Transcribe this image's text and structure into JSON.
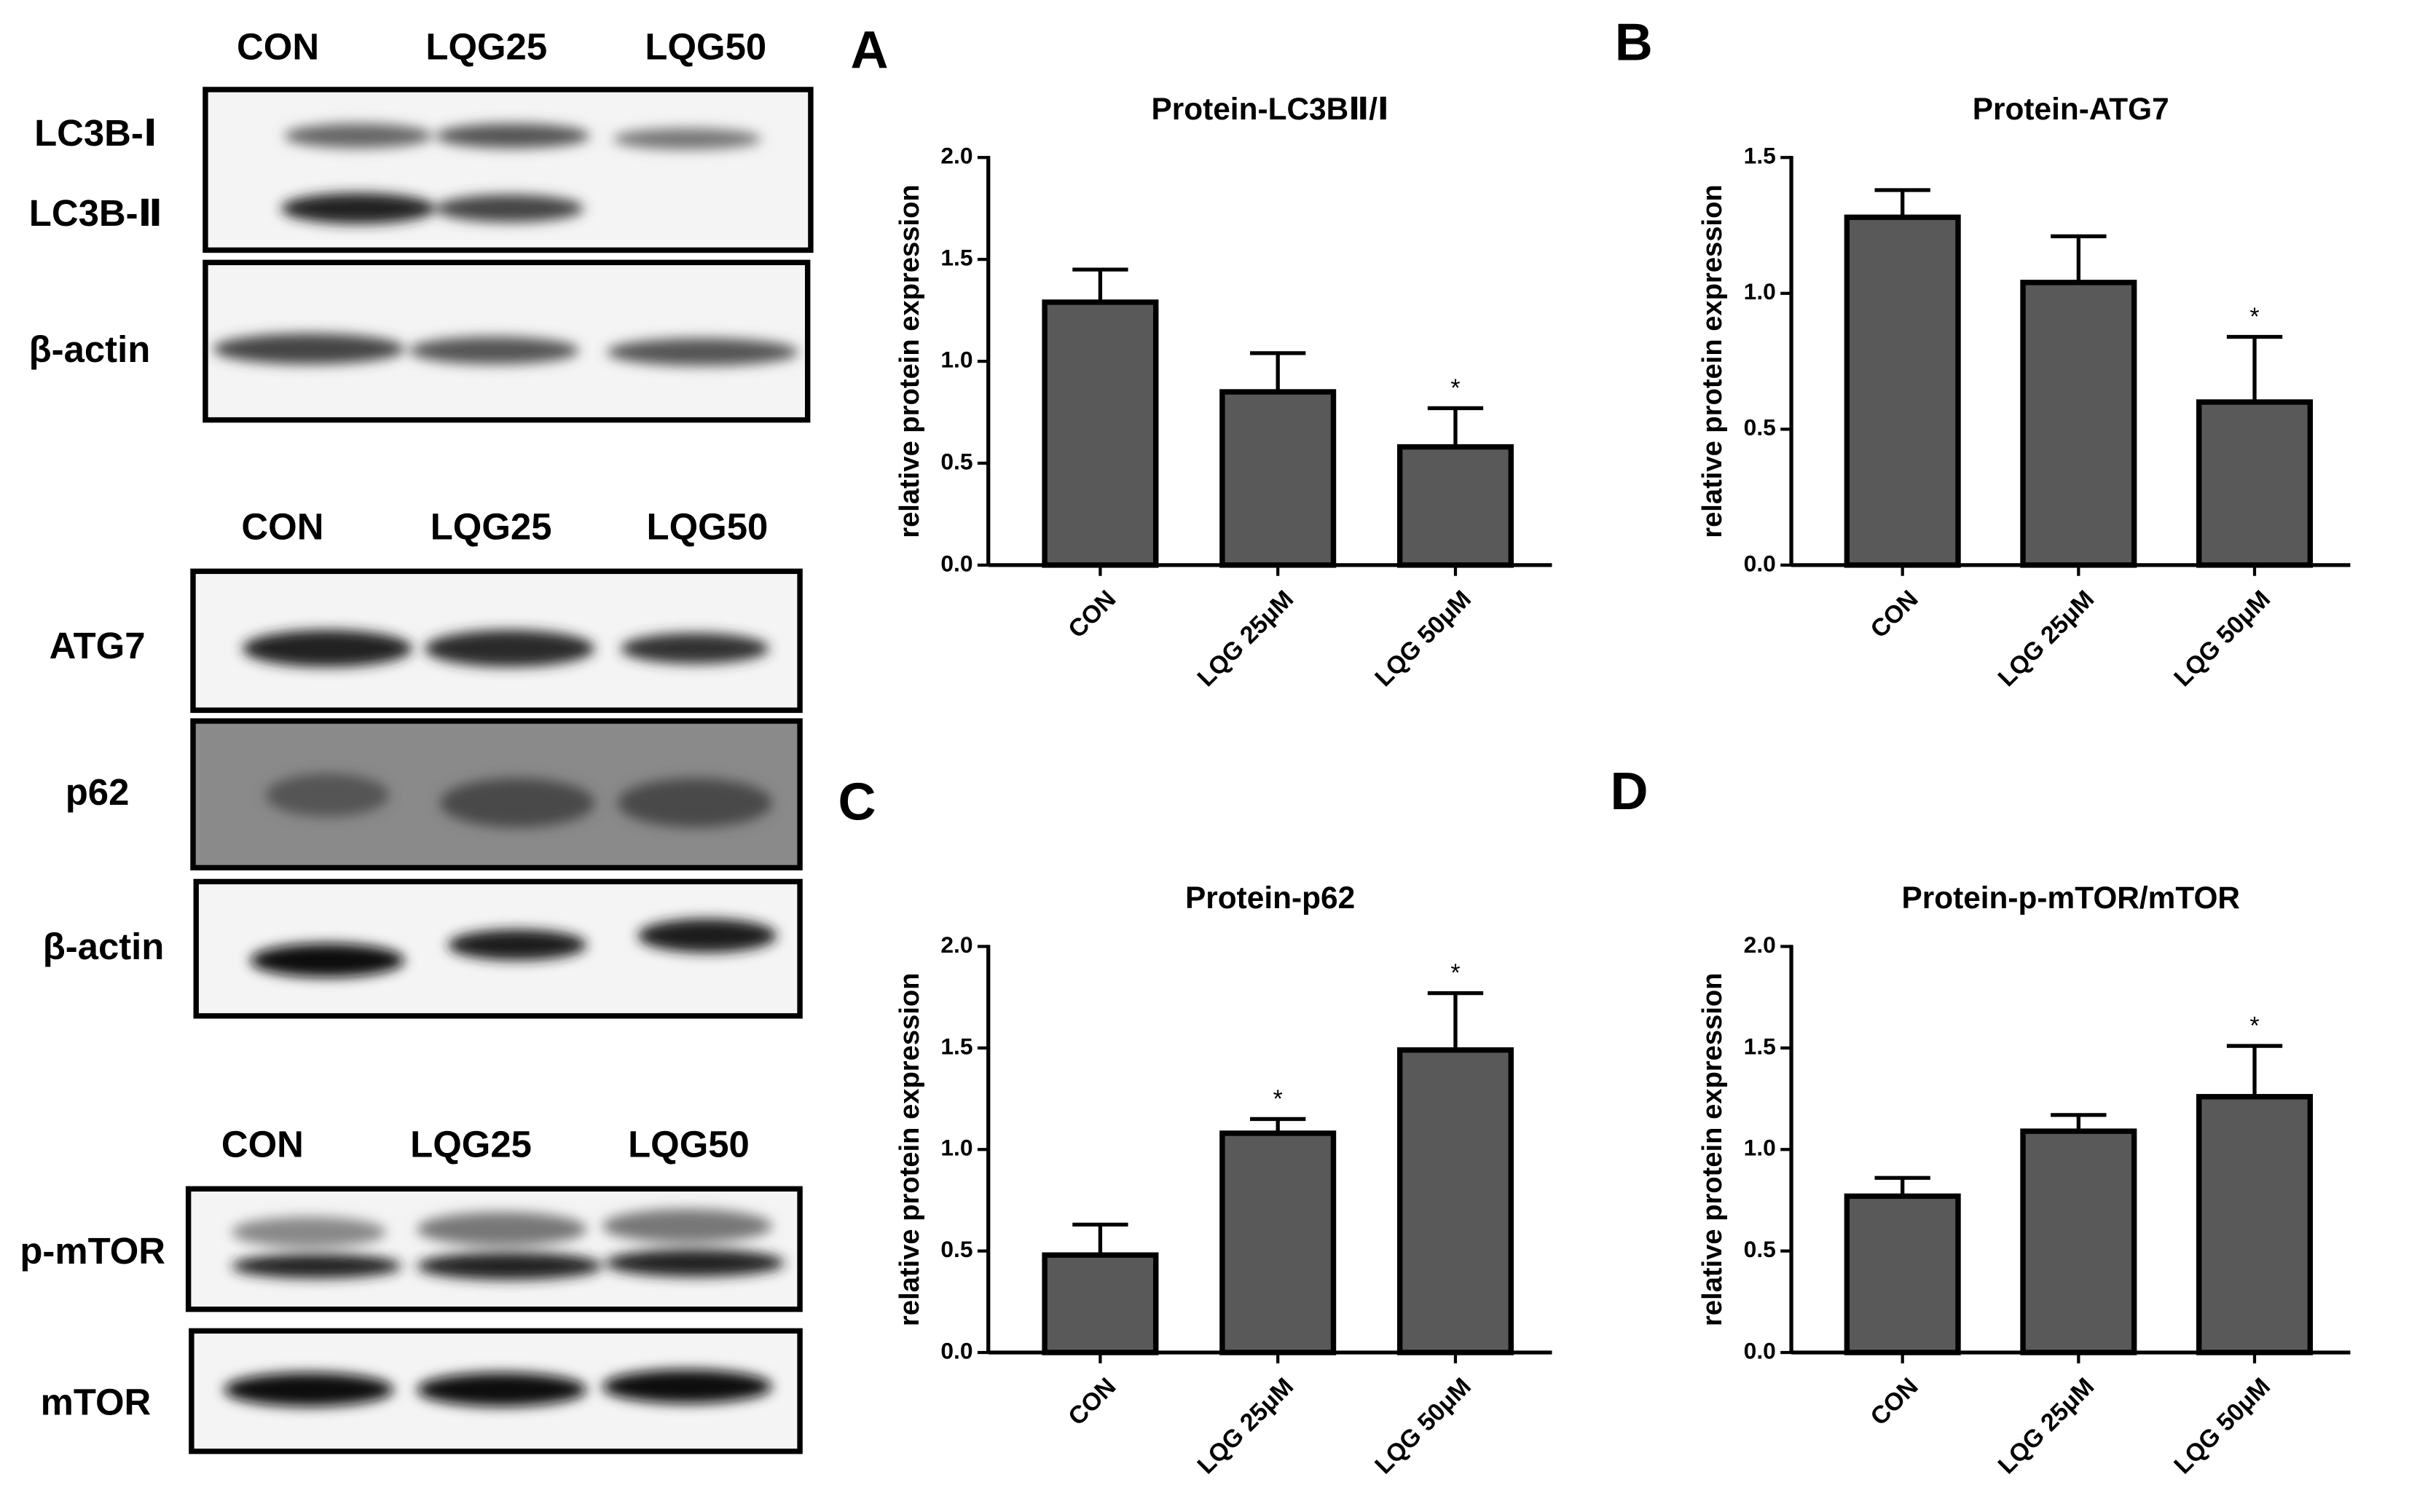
{
  "blots": {
    "groups": [
      {
        "lanes": [
          "CON",
          "LQG25",
          "LQG50"
        ],
        "rows": [
          "LC3B-Ⅰ",
          "LC3B-Ⅱ",
          "β-actin"
        ]
      },
      {
        "lanes": [
          "CON",
          "LQG25",
          "LQG50"
        ],
        "rows": [
          "ATG7",
          "p62",
          "β-actin"
        ]
      },
      {
        "lanes": [
          "CON",
          "LQG25",
          "LQG50"
        ],
        "rows": [
          "p-mTOR",
          "mTOR"
        ]
      }
    ]
  },
  "chart_data": [
    {
      "type": "bar",
      "panel": "A",
      "title": "Protein-LC3BⅡ/Ⅰ",
      "y_label": "relative protein expression",
      "categories": [
        "CON",
        "LQG 25μM",
        "LQG 50μM"
      ],
      "values": [
        1.29,
        0.85,
        0.58
      ],
      "errors": [
        0.16,
        0.19,
        0.19
      ],
      "annotations": [
        {
          "index": 2,
          "text": "*"
        }
      ],
      "color": "#595959",
      "ylim": [
        0,
        2
      ],
      "yticks": [
        {
          "value": 0,
          "label": "0.0"
        },
        0.5,
        {
          "value": 1,
          "label": "1.0"
        },
        1.5,
        {
          "value": 2,
          "label": "2.0"
        }
      ]
    },
    {
      "type": "bar",
      "panel": "B",
      "title": "Protein-ATG7",
      "y_label": "relative protein expression",
      "categories": [
        "CON",
        "LQG 25μM",
        "LQG 50μM"
      ],
      "values": [
        1.28,
        1.04,
        0.6
      ],
      "errors": [
        0.1,
        0.17,
        0.24
      ],
      "annotations": [
        {
          "index": 2,
          "text": "*"
        }
      ],
      "color": "#595959",
      "ylim": [
        0,
        1.5
      ],
      "yticks": [
        {
          "value": 0,
          "label": "0.0"
        },
        0.5,
        {
          "value": 1,
          "label": "1.0"
        },
        1.5
      ]
    },
    {
      "type": "bar",
      "panel": "C",
      "title": "Protein-p62",
      "y_label": "relative protein expression",
      "categories": [
        "CON",
        "LQG 25μM",
        "LQG 50μM"
      ],
      "values": [
        0.48,
        1.08,
        1.49
      ],
      "errors": [
        0.15,
        0.07,
        0.28
      ],
      "annotations": [
        {
          "index": 1,
          "text": "*"
        },
        {
          "index": 2,
          "text": "*"
        }
      ],
      "color": "#595959",
      "ylim": [
        0,
        2
      ],
      "yticks": [
        {
          "value": 0,
          "label": "0.0"
        },
        0.5,
        {
          "value": 1,
          "label": "1.0"
        },
        1.5,
        {
          "value": 2,
          "label": "2.0"
        }
      ]
    },
    {
      "type": "bar",
      "panel": "D",
      "title": "Protein-p-mTOR/mTOR",
      "y_label": "relative protein expression",
      "categories": [
        "CON",
        "LQG 25μM",
        "LQG 50μM"
      ],
      "values": [
        0.77,
        1.09,
        1.26
      ],
      "errors": [
        0.09,
        0.08,
        0.25
      ],
      "annotations": [
        {
          "index": 2,
          "text": "*"
        }
      ],
      "color": "#595959",
      "ylim": [
        0,
        2
      ],
      "yticks": [
        {
          "value": 0,
          "label": "0.0"
        },
        0.5,
        {
          "value": 1,
          "label": "1.0"
        },
        1.5,
        {
          "value": 2,
          "label": "2.0"
        }
      ]
    }
  ]
}
